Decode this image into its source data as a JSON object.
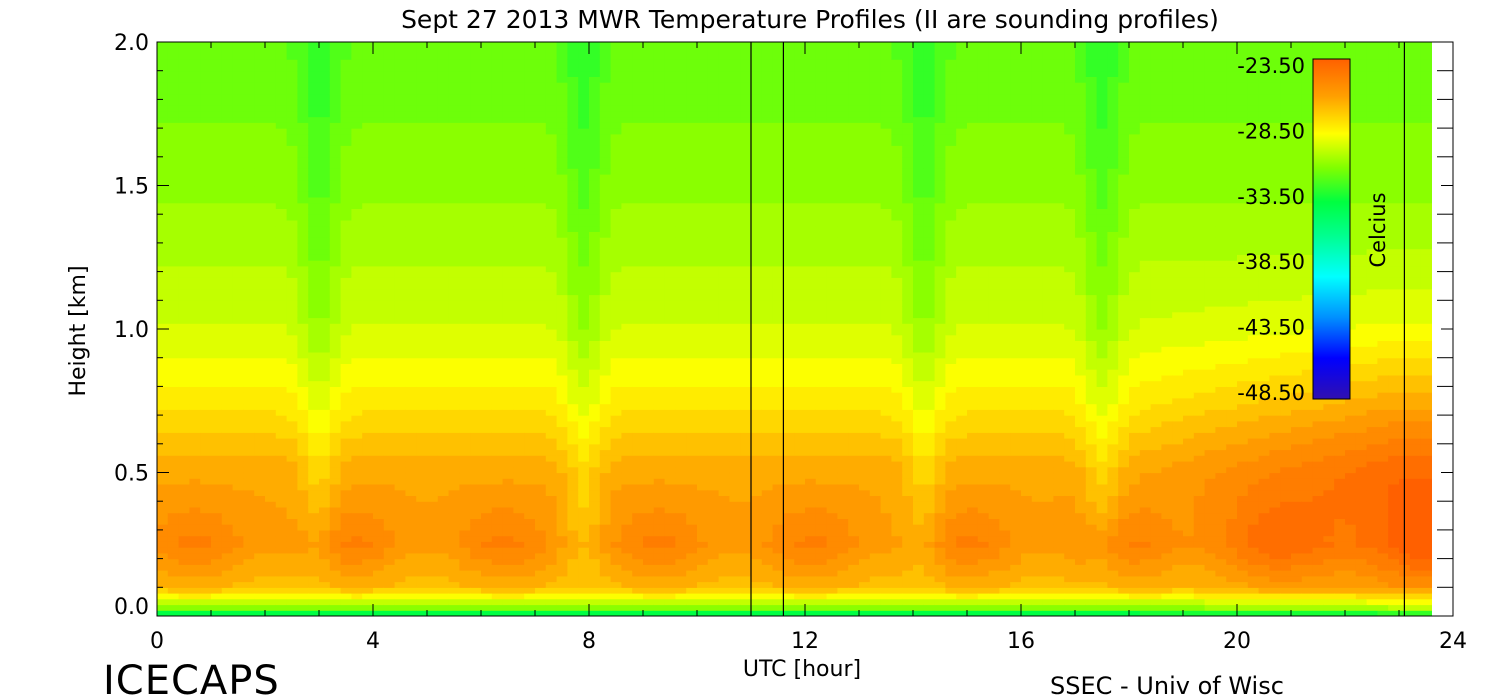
{
  "chart_data": {
    "type": "heatmap",
    "title": "Sept 27 2013 MWR Temperature Profiles (II are sounding profiles)",
    "xlabel": "UTC [hour]",
    "ylabel": "Height [km]",
    "xlim": [
      0,
      24
    ],
    "ylim": [
      0.0,
      2.0
    ],
    "xticks": [
      "0",
      "4",
      "8",
      "12",
      "16",
      "20",
      "24"
    ],
    "yticks": [
      "0.0",
      "0.5",
      "1.0",
      "1.5",
      "2.0"
    ],
    "data_end_hour": 23.6,
    "colorbar": {
      "label": "Celcius",
      "range": [
        -48.5,
        -23.5
      ],
      "tick_labels": [
        "-23.50",
        "-28.50",
        "-33.50",
        "-38.50",
        "-43.50",
        "-48.50"
      ],
      "colors": [
        "#ff6000",
        "#ffa000",
        "#ffff00",
        "#80ff00",
        "#00ff40",
        "#00ff90",
        "#00ffff",
        "#0090ff",
        "#0000ff",
        "#3010b0"
      ]
    },
    "sounding_times_hour": [
      11.0,
      11.6,
      23.1
    ],
    "temperature_profile_levels_km": [
      0.0,
      0.03,
      0.1,
      0.25,
      0.5,
      0.75,
      1.0,
      1.5,
      2.0
    ],
    "temperature_profiles_typical_c": [
      -36.0,
      -31.5,
      -27.0,
      -25.5,
      -26.5,
      -28.5,
      -30.0,
      -31.5,
      -32.5
    ]
  },
  "footer": {
    "left": "ICECAPS",
    "right": "SSEC - Univ of Wisc"
  }
}
